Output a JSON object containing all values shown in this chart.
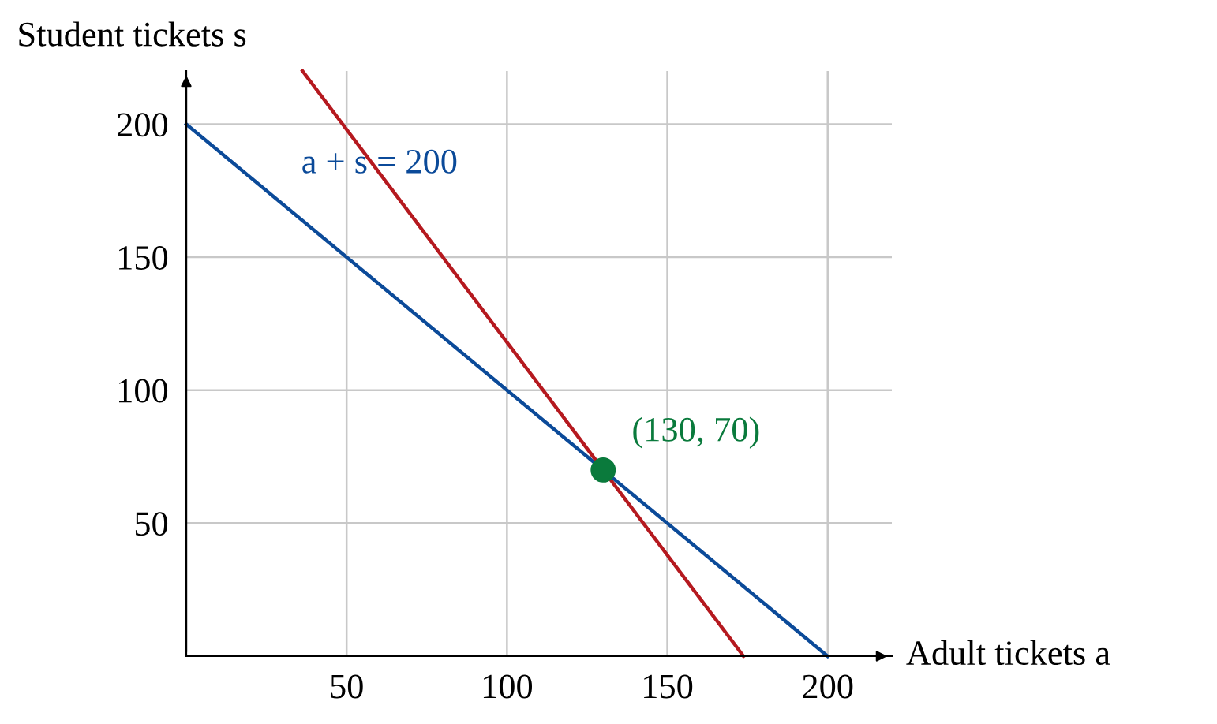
{
  "chart_data": {
    "type": "line",
    "xlabel": "Adult tickets a",
    "ylabel": "Student tickets s",
    "series": [
      {
        "color": "#0b4a99",
        "x": [
          0,
          200
        ],
        "values": [
          200,
          0
        ]
      },
      {
        "color": "#b5191f",
        "x": [
          36.25,
          173.75
        ],
        "values": [
          220,
          0
        ]
      },
      {
        "type": "scatter",
        "color": "#0a7a3c",
        "x": [
          130
        ],
        "values": [
          70
        ]
      }
    ],
    "annotations": [
      "a + s = 200",
      {
        "text": "(130, 70)",
        "x": 130,
        "y": 70
      }
    ],
    "xlim": [
      0,
      220
    ],
    "ylim": [
      0,
      220
    ],
    "xticks": [
      50,
      100,
      150,
      200
    ],
    "yticks": [
      50,
      100,
      150,
      200
    ],
    "grid": true,
    "line_style": "solid"
  }
}
